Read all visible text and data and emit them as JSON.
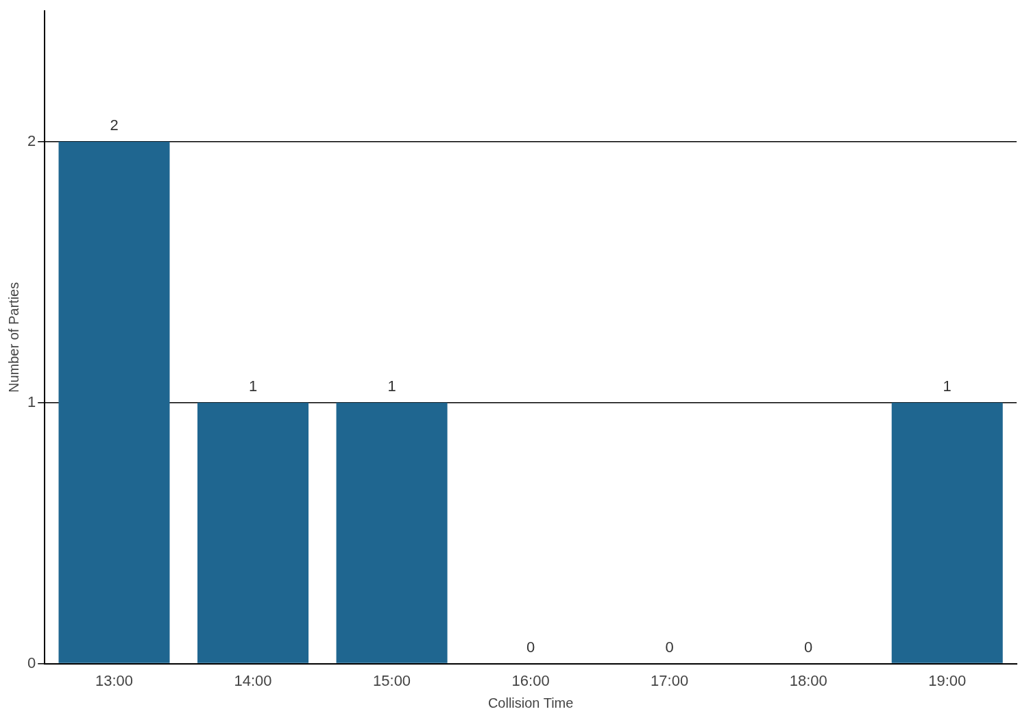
{
  "chart_data": {
    "type": "bar",
    "xlabel": "Collision Time",
    "ylabel": "Number of Parties",
    "categories": [
      "13:00",
      "14:00",
      "15:00",
      "16:00",
      "17:00",
      "18:00",
      "19:00"
    ],
    "values": [
      2,
      1,
      1,
      0,
      0,
      0,
      1
    ],
    "color": "#1f6690",
    "ylim": [
      0,
      2.5
    ],
    "yticks": [
      0,
      1,
      2
    ],
    "grid": "y",
    "data_labels": true,
    "legend": false
  }
}
